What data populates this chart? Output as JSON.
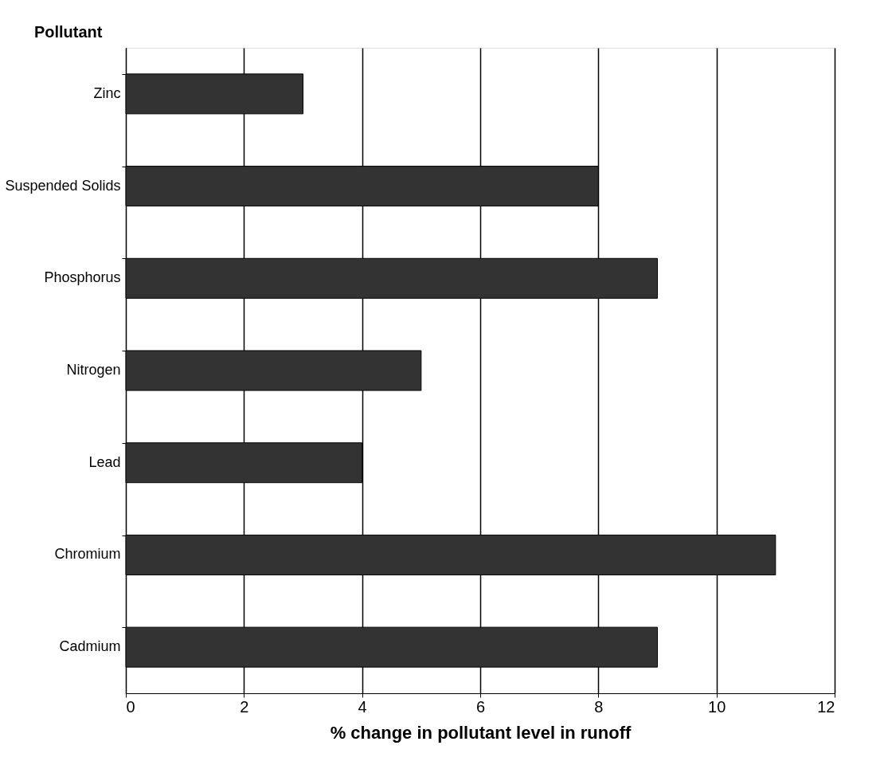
{
  "chart_data": {
    "type": "bar",
    "orientation": "horizontal",
    "xlabel": "% change in pollutant level in runoff",
    "ylabel": "Pollutant",
    "categories": [
      "Zinc",
      "Suspended Solids",
      "Phosphorus",
      "Nitrogen",
      "Lead",
      "Chromium",
      "Cadmium"
    ],
    "values": [
      3,
      8,
      9,
      5,
      4,
      11,
      9
    ],
    "color": "#333333",
    "xlim": [
      0,
      12
    ],
    "xticks": [
      0,
      2,
      4,
      6,
      8,
      10,
      12
    ],
    "grid": "x"
  }
}
